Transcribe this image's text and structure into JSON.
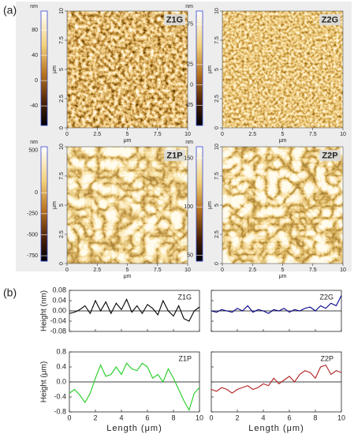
{
  "panel_labels": {
    "a": "(a)",
    "b": "(b)"
  },
  "image_axis": {
    "lim": [
      0,
      10
    ],
    "ticks": [
      0,
      2.5,
      5,
      7.5,
      10
    ],
    "label": "μm"
  },
  "afm_images": [
    {
      "label": "Z1G",
      "unit": "nm",
      "colorbar": {
        "lim": [
          -71,
          110
        ],
        "ticks": [
          80,
          40,
          0,
          -40
        ]
      }
    },
    {
      "label": "Z2G",
      "unit": "nm",
      "colorbar": {
        "lim": [
          -50,
          91
        ],
        "ticks": [
          75,
          25,
          0,
          -25
        ]
      }
    },
    {
      "label": "Z1P",
      "unit": "nm",
      "colorbar": {
        "lim": [
          -815,
          546
        ],
        "ticks": [
          500,
          0,
          -250,
          -500,
          -750
        ]
      }
    },
    {
      "label": "Z2P",
      "unit": "nm",
      "colorbar": {
        "lim": [
          44,
          162
        ],
        "ticks": [
          150,
          100,
          50
        ]
      }
    }
  ],
  "chart_data": [
    {
      "type": "line",
      "title": "Z1G",
      "ylabel": "Height (nm)",
      "color": "#000000",
      "x": [
        0,
        0.4,
        0.8,
        1.2,
        1.6,
        2,
        2.4,
        2.8,
        3.2,
        3.6,
        4,
        4.4,
        4.8,
        5.2,
        5.6,
        6,
        6.4,
        6.8,
        7.2,
        7.6,
        8,
        8.4,
        8.8,
        9.2,
        9.6,
        10
      ],
      "values": [
        -0.01,
        -0.005,
        0.005,
        0.02,
        -0.01,
        0.04,
        0.0,
        0.035,
        -0.01,
        0.03,
        0.005,
        0.045,
        -0.005,
        0.02,
        -0.01,
        0.025,
        0.01,
        -0.015,
        0.04,
        0.0,
        -0.02,
        0.02,
        -0.03,
        -0.04,
        0.0,
        0.015
      ],
      "xlim": [
        0,
        10
      ],
      "xticks": [
        0,
        2,
        4,
        6,
        8,
        10
      ],
      "ylim": [
        -0.08,
        0.08
      ],
      "yticks": [
        0.08,
        0.04,
        {
          "value": 0,
          "label": "0.00"
        },
        -0.04,
        -0.08
      ]
    },
    {
      "type": "line",
      "title": "Z2G",
      "color": "#00008b",
      "x": [
        0,
        0.4,
        0.8,
        1.2,
        1.6,
        2,
        2.4,
        2.8,
        3.2,
        3.6,
        4,
        4.4,
        4.8,
        5.2,
        5.6,
        6,
        6.4,
        6.8,
        7.2,
        7.6,
        8,
        8.4,
        8.8,
        9.2,
        9.6,
        10
      ],
      "values": [
        0.0,
        -0.005,
        0.005,
        0.0,
        -0.005,
        0.01,
        0.0,
        0.02,
        -0.005,
        0.005,
        0.0,
        -0.01,
        0.005,
        0.0,
        0.01,
        -0.005,
        0.005,
        0.0,
        0.01,
        0.015,
        0.0,
        0.02,
        0.01,
        0.03,
        0.02,
        0.06
      ],
      "xlim": [
        0,
        10
      ],
      "xticks": [
        0,
        2,
        4,
        6,
        8,
        10
      ],
      "ylim": [
        -0.08,
        0.08
      ],
      "yticks": [
        0.08,
        0.04,
        0,
        -0.04,
        -0.08
      ]
    },
    {
      "type": "line",
      "title": "Z1P",
      "ylabel": "Height (μm)",
      "xlabel": "Length (μm)",
      "color": "#22cc22",
      "x": [
        0,
        0.4,
        0.8,
        1.2,
        1.6,
        2,
        2.4,
        2.8,
        3.2,
        3.6,
        4,
        4.4,
        4.8,
        5.2,
        5.6,
        6,
        6.4,
        6.8,
        7.2,
        7.6,
        8,
        8.4,
        8.8,
        9.2,
        9.6,
        10
      ],
      "values": [
        -0.3,
        -0.2,
        -0.35,
        -0.55,
        -0.3,
        0.1,
        0.45,
        0.15,
        0.2,
        0.4,
        0.2,
        0.5,
        0.35,
        0.3,
        0.5,
        0.4,
        0.1,
        0.2,
        0.0,
        0.35,
        0.1,
        -0.2,
        -0.5,
        -0.75,
        -0.3,
        -0.15
      ],
      "xlim": [
        0,
        10
      ],
      "xticks": [
        0,
        2,
        4,
        6,
        8,
        10
      ],
      "ylim": [
        -0.8,
        0.8
      ],
      "yticks": [
        0.8,
        0.4,
        {
          "value": 0,
          "label": "0.0"
        },
        -0.4,
        -0.8
      ]
    },
    {
      "type": "line",
      "title": "Z2P",
      "xlabel": "Length (μm)",
      "color": "#b22222",
      "x": [
        0,
        0.4,
        0.8,
        1.2,
        1.6,
        2,
        2.4,
        2.8,
        3.2,
        3.6,
        4,
        4.4,
        4.8,
        5.2,
        5.6,
        6,
        6.4,
        6.8,
        7.2,
        7.6,
        8,
        8.4,
        8.8,
        9.2,
        9.6,
        10
      ],
      "values": [
        -0.2,
        -0.25,
        -0.15,
        -0.2,
        -0.3,
        -0.2,
        -0.15,
        -0.1,
        -0.2,
        -0.15,
        -0.05,
        -0.1,
        0.1,
        -0.05,
        0.05,
        0.15,
        0.0,
        0.2,
        0.3,
        0.25,
        0.1,
        0.4,
        0.45,
        0.2,
        0.3,
        0.25
      ],
      "xlim": [
        0,
        10
      ],
      "xticks": [
        0,
        2,
        4,
        6,
        8,
        10
      ],
      "ylim": [
        -0.8,
        0.8
      ],
      "yticks": [
        0.8,
        0.4,
        0,
        -0.4,
        -0.8
      ]
    }
  ]
}
